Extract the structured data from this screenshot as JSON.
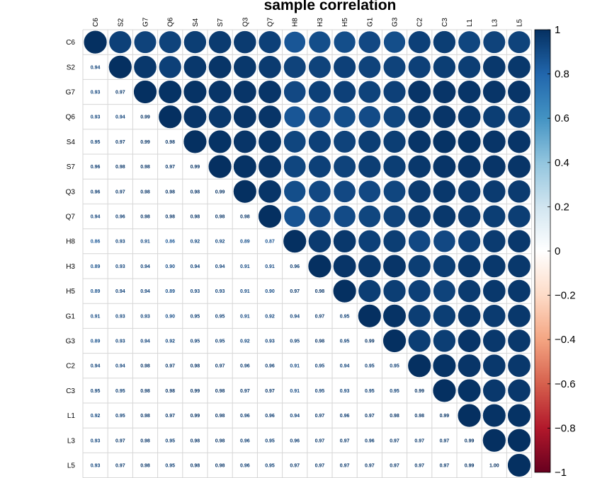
{
  "chart_data": {
    "type": "heatmap",
    "title": "sample correlation",
    "variables": [
      "C6",
      "S2",
      "G7",
      "Q6",
      "S4",
      "S7",
      "Q3",
      "Q7",
      "H8",
      "H3",
      "H5",
      "G1",
      "G3",
      "C2",
      "C3",
      "L1",
      "L3",
      "L5"
    ],
    "layout": "lower triangle printed as numbers, upper triangle and diagonal drawn as circles",
    "lower_triangle_values": [
      [],
      [
        0.94
      ],
      [
        0.93,
        0.97
      ],
      [
        0.93,
        0.94,
        0.99
      ],
      [
        0.95,
        0.97,
        0.99,
        0.98
      ],
      [
        0.96,
        0.98,
        0.98,
        0.97,
        0.99
      ],
      [
        0.96,
        0.97,
        0.98,
        0.98,
        0.98,
        0.99
      ],
      [
        0.94,
        0.96,
        0.98,
        0.98,
        0.98,
        0.98,
        0.98
      ],
      [
        0.86,
        0.93,
        0.91,
        0.86,
        0.92,
        0.92,
        0.89,
        0.87
      ],
      [
        0.89,
        0.93,
        0.94,
        0.9,
        0.94,
        0.94,
        0.91,
        0.91,
        0.96
      ],
      [
        0.89,
        0.94,
        0.94,
        0.89,
        0.93,
        0.93,
        0.91,
        0.9,
        0.97,
        0.98
      ],
      [
        0.91,
        0.93,
        0.93,
        0.9,
        0.95,
        0.95,
        0.91,
        0.92,
        0.94,
        0.97,
        0.95
      ],
      [
        0.89,
        0.93,
        0.94,
        0.92,
        0.95,
        0.95,
        0.92,
        0.93,
        0.95,
        0.98,
        0.95,
        0.99
      ],
      [
        0.94,
        0.94,
        0.98,
        0.97,
        0.98,
        0.97,
        0.96,
        0.96,
        0.91,
        0.95,
        0.94,
        0.95,
        0.95
      ],
      [
        0.95,
        0.95,
        0.98,
        0.98,
        0.99,
        0.98,
        0.97,
        0.97,
        0.91,
        0.95,
        0.93,
        0.95,
        0.95,
        0.99
      ],
      [
        0.92,
        0.95,
        0.98,
        0.97,
        0.99,
        0.98,
        0.96,
        0.96,
        0.94,
        0.97,
        0.96,
        0.97,
        0.98,
        0.98,
        0.99
      ],
      [
        0.93,
        0.97,
        0.98,
        0.95,
        0.98,
        0.98,
        0.96,
        0.95,
        0.96,
        0.97,
        0.97,
        0.96,
        0.97,
        0.97,
        0.97,
        0.99
      ],
      [
        0.93,
        0.97,
        0.98,
        0.95,
        0.98,
        0.98,
        0.96,
        0.95,
        0.97,
        0.97,
        0.97,
        0.97,
        0.97,
        0.97,
        0.97,
        0.99,
        1.0
      ]
    ],
    "colorbar": {
      "range": [
        -1,
        1
      ],
      "ticks": [
        "1",
        "0.8",
        "0.6",
        "0.4",
        "0.2",
        "0",
        "−0.2",
        "−0.4",
        "−0.6",
        "−0.8",
        "−1"
      ],
      "colors": [
        "#67001F",
        "#B2182B",
        "#D6604D",
        "#F4A582",
        "#FDDBC7",
        "#FFFFFF",
        "#D1E5F0",
        "#92C5DE",
        "#4393C3",
        "#2166AC",
        "#053061"
      ]
    }
  }
}
